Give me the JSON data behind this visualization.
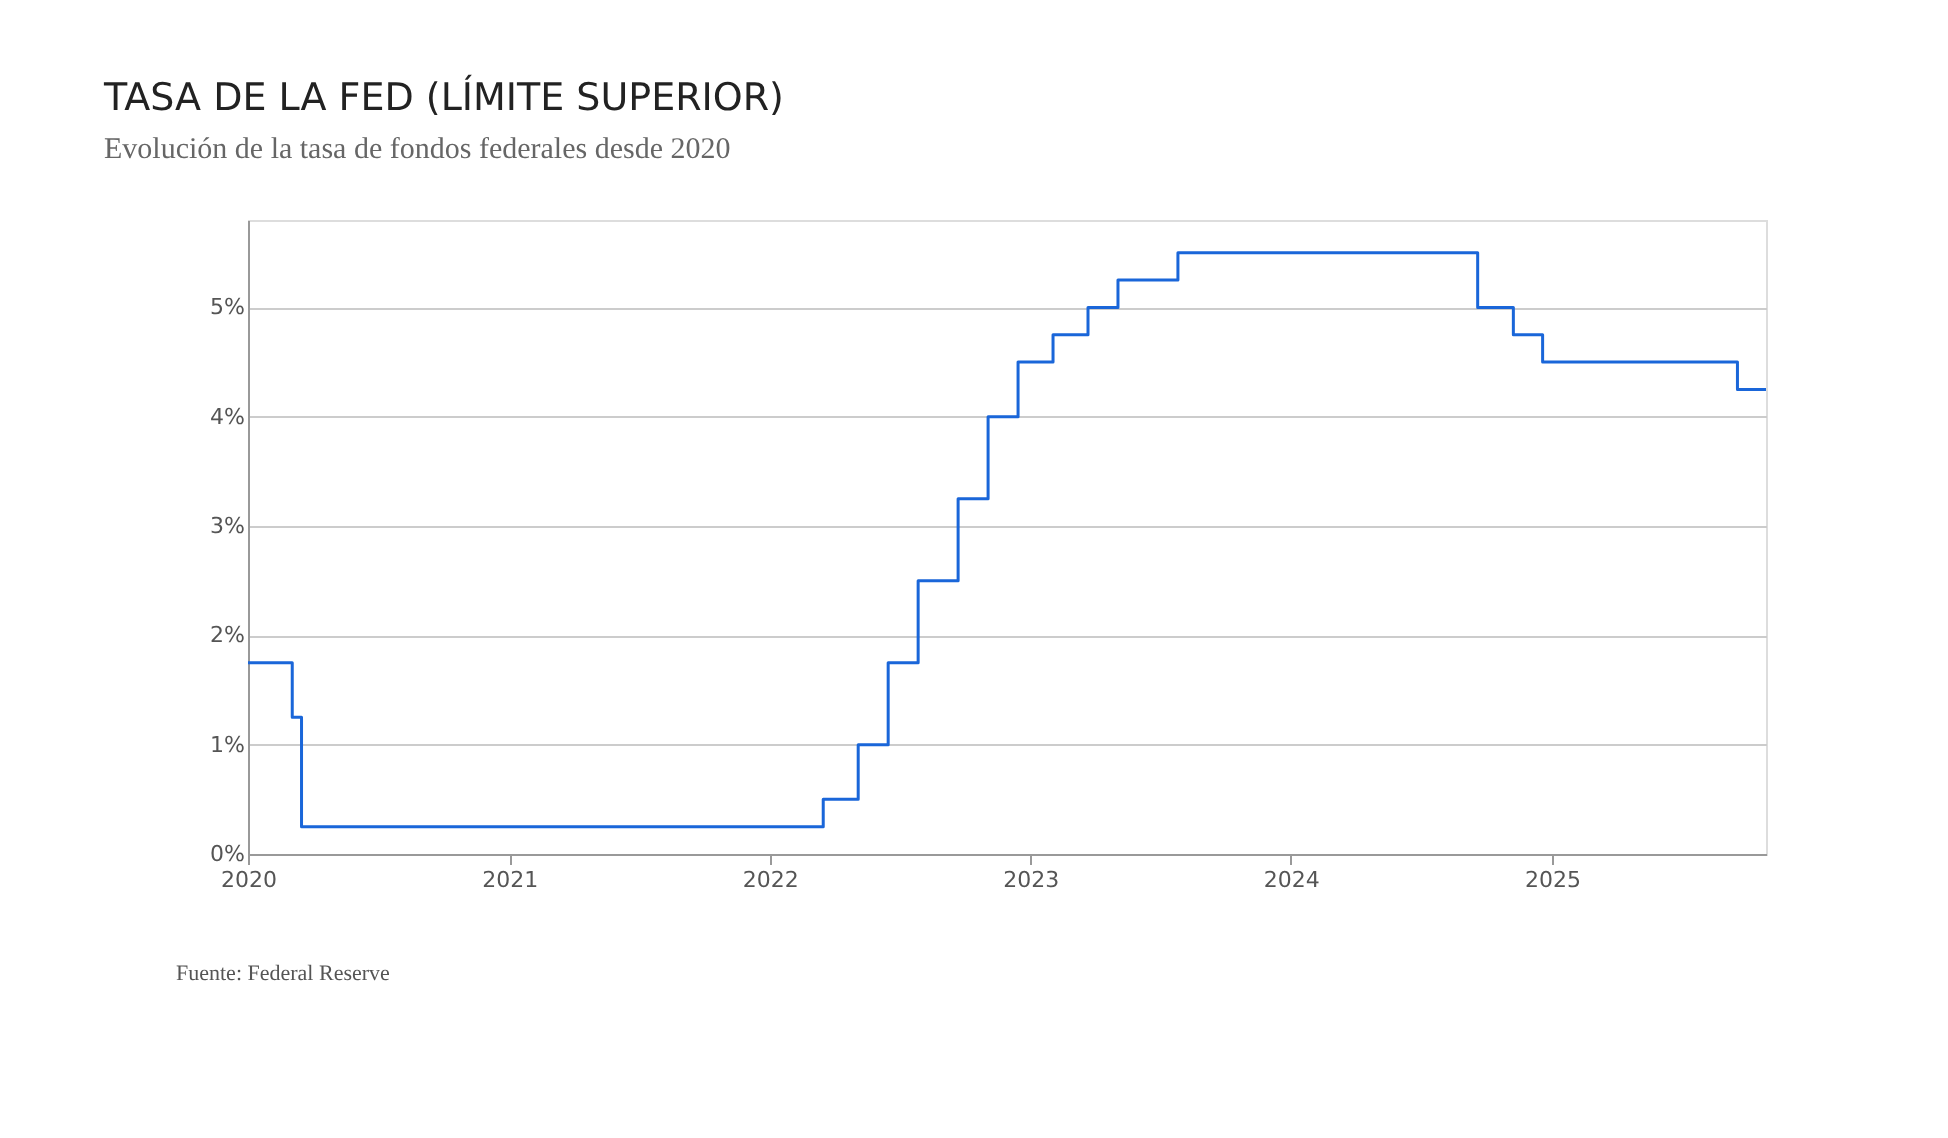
{
  "chart_data": {
    "type": "step",
    "title": "TASA DE LA FED (LÍMITE SUPERIOR)",
    "subtitle": "Evolución de la tasa de fondos federales desde 2020",
    "x": [
      "2020-01-01",
      "2020-03-03",
      "2020-03-16",
      "2022-03-17",
      "2022-05-05",
      "2022-06-16",
      "2022-07-28",
      "2022-09-22",
      "2022-11-03",
      "2022-12-15",
      "2023-02-02",
      "2023-03-23",
      "2023-05-04",
      "2023-07-27",
      "2024-09-19",
      "2024-11-08",
      "2024-12-19",
      "2025-09-18",
      "2025-10-28"
    ],
    "series": [
      {
        "color": "#1a66d9",
        "values": [
          1.75,
          1.25,
          0.25,
          0.5,
          1.0,
          1.75,
          2.5,
          3.25,
          4.0,
          4.5,
          4.75,
          5.0,
          5.25,
          5.5,
          5.0,
          4.75,
          4.5,
          4.25,
          4.25
        ]
      }
    ],
    "xlim": [
      "2020-01-01",
      "2025-10-28"
    ],
    "xticks": [
      {
        "value": "2020-01-01",
        "label": "2020"
      },
      {
        "value": "2021-01-01",
        "label": "2021"
      },
      {
        "value": "2022-01-01",
        "label": "2022"
      },
      {
        "value": "2023-01-01",
        "label": "2023"
      },
      {
        "value": "2024-01-01",
        "label": "2024"
      },
      {
        "value": "2025-01-01",
        "label": "2025"
      }
    ],
    "ylim": [
      0,
      5.8
    ],
    "yticks": [
      {
        "value": 0,
        "label": "0%"
      },
      {
        "value": 1,
        "label": "1%"
      },
      {
        "value": 2,
        "label": "2%"
      },
      {
        "value": 3,
        "label": "3%"
      },
      {
        "value": 4,
        "label": "4%"
      },
      {
        "value": 5,
        "label": "5%"
      }
    ],
    "grid": "y",
    "marker": "none",
    "line_style": "solid",
    "annotations": [
      "Fuente: Federal Reserve"
    ]
  }
}
